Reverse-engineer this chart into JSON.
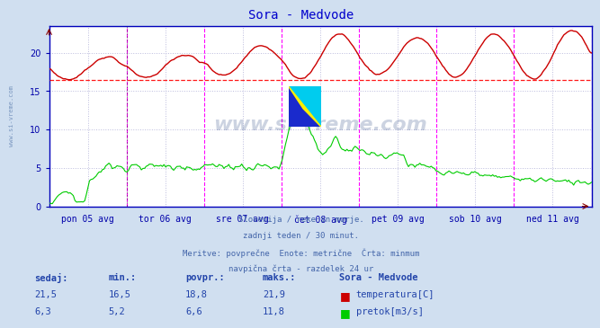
{
  "title": "Sora - Medvode",
  "title_color": "#0000cc",
  "bg_color": "#d0dff0",
  "plot_bg_color": "#ffffff",
  "grid_color": "#cccccc",
  "grid_dot_color": "#bbbbdd",
  "axis_color": "#0000bb",
  "tick_label_color": "#0000aa",
  "x_labels": [
    "pon 05 avg",
    "tor 06 avg",
    "sre 07 avg",
    "čet 08 avg",
    "pet 09 avg",
    "sob 10 avg",
    "ned 11 avg"
  ],
  "y_ticks": [
    0,
    5,
    10,
    15,
    20
  ],
  "y_min": 0,
  "y_max": 23.5,
  "dashed_line_color": "#ff0000",
  "dashed_line_y": 16.5,
  "vline_color": "#ff00ff",
  "temp_color": "#cc0000",
  "flow_color": "#00cc00",
  "temp_min": 16.5,
  "temp_max": 21.9,
  "temp_avg": 18.8,
  "temp_cur": 21.5,
  "flow_min": 5.2,
  "flow_max": 11.8,
  "flow_avg": 6.6,
  "flow_cur": 6.3,
  "subtitle_lines": [
    "Slovenija / reke in morje.",
    "zadnji teden / 30 minut.",
    "Meritve: povprečne  Enote: metrične  Črta: minmum",
    "navpična črta - razdelek 24 ur"
  ],
  "watermark_text": "www.si-vreme.com",
  "watermark_color": "#1a3a6a",
  "side_label": "www.si-vreme.com"
}
